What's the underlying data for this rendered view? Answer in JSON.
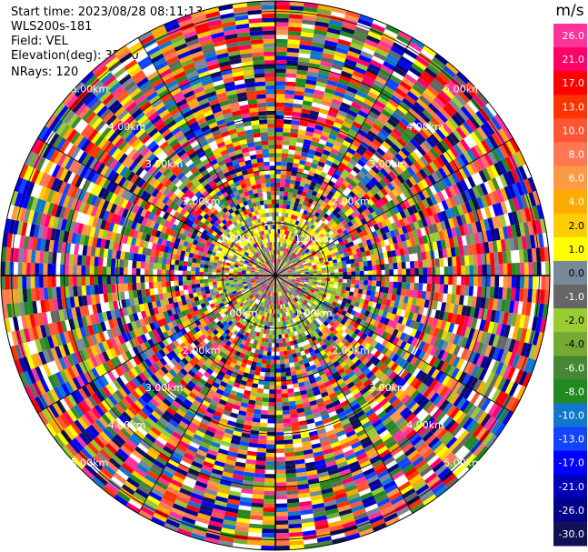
{
  "header": {
    "start_time": "Start time: 2023/08/28 08:11:13",
    "instrument": "WLS200s-181",
    "field": "Field: VEL",
    "elevation": "Elevation(deg): 35.30",
    "nrays": "NRays: 120"
  },
  "chart_data": {
    "type": "heatmap",
    "projection": "polar-ppi",
    "field": "VEL",
    "units": "m/s",
    "n_rays": 120,
    "elevation_deg": 35.3,
    "range_ring_labels": [
      "1.00km",
      "2.00km",
      "3.00km",
      "4.00km",
      "5.00km"
    ],
    "range_rings_km": [
      1,
      2,
      3,
      4,
      5
    ],
    "max_range_km": 5.2,
    "colorbar": {
      "unit": "m/s",
      "ticks": [
        "26.0",
        "21.0",
        "17.0",
        "13.0",
        "10.0",
        "8.0",
        "6.0",
        "4.0",
        "2.0",
        "1.0",
        "0.0",
        "-1.0",
        "-2.0",
        "-4.0",
        "-6.0",
        "-8.0",
        "-10.0",
        "-13.0",
        "-17.0",
        "-21.0",
        "-26.0",
        "-30.0"
      ],
      "colors": [
        "#ff3399",
        "#ff0066",
        "#ff0000",
        "#ff3300",
        "#ff5533",
        "#ff7755",
        "#ff9944",
        "#ffaa00",
        "#ffcc00",
        "#ffff00",
        "#778899",
        "#666666",
        "#99cc33",
        "#77aa33",
        "#448833",
        "#228822",
        "#1177cc",
        "#1144ff",
        "#0000ff",
        "#0000bb",
        "#000088",
        "#111155"
      ]
    }
  }
}
